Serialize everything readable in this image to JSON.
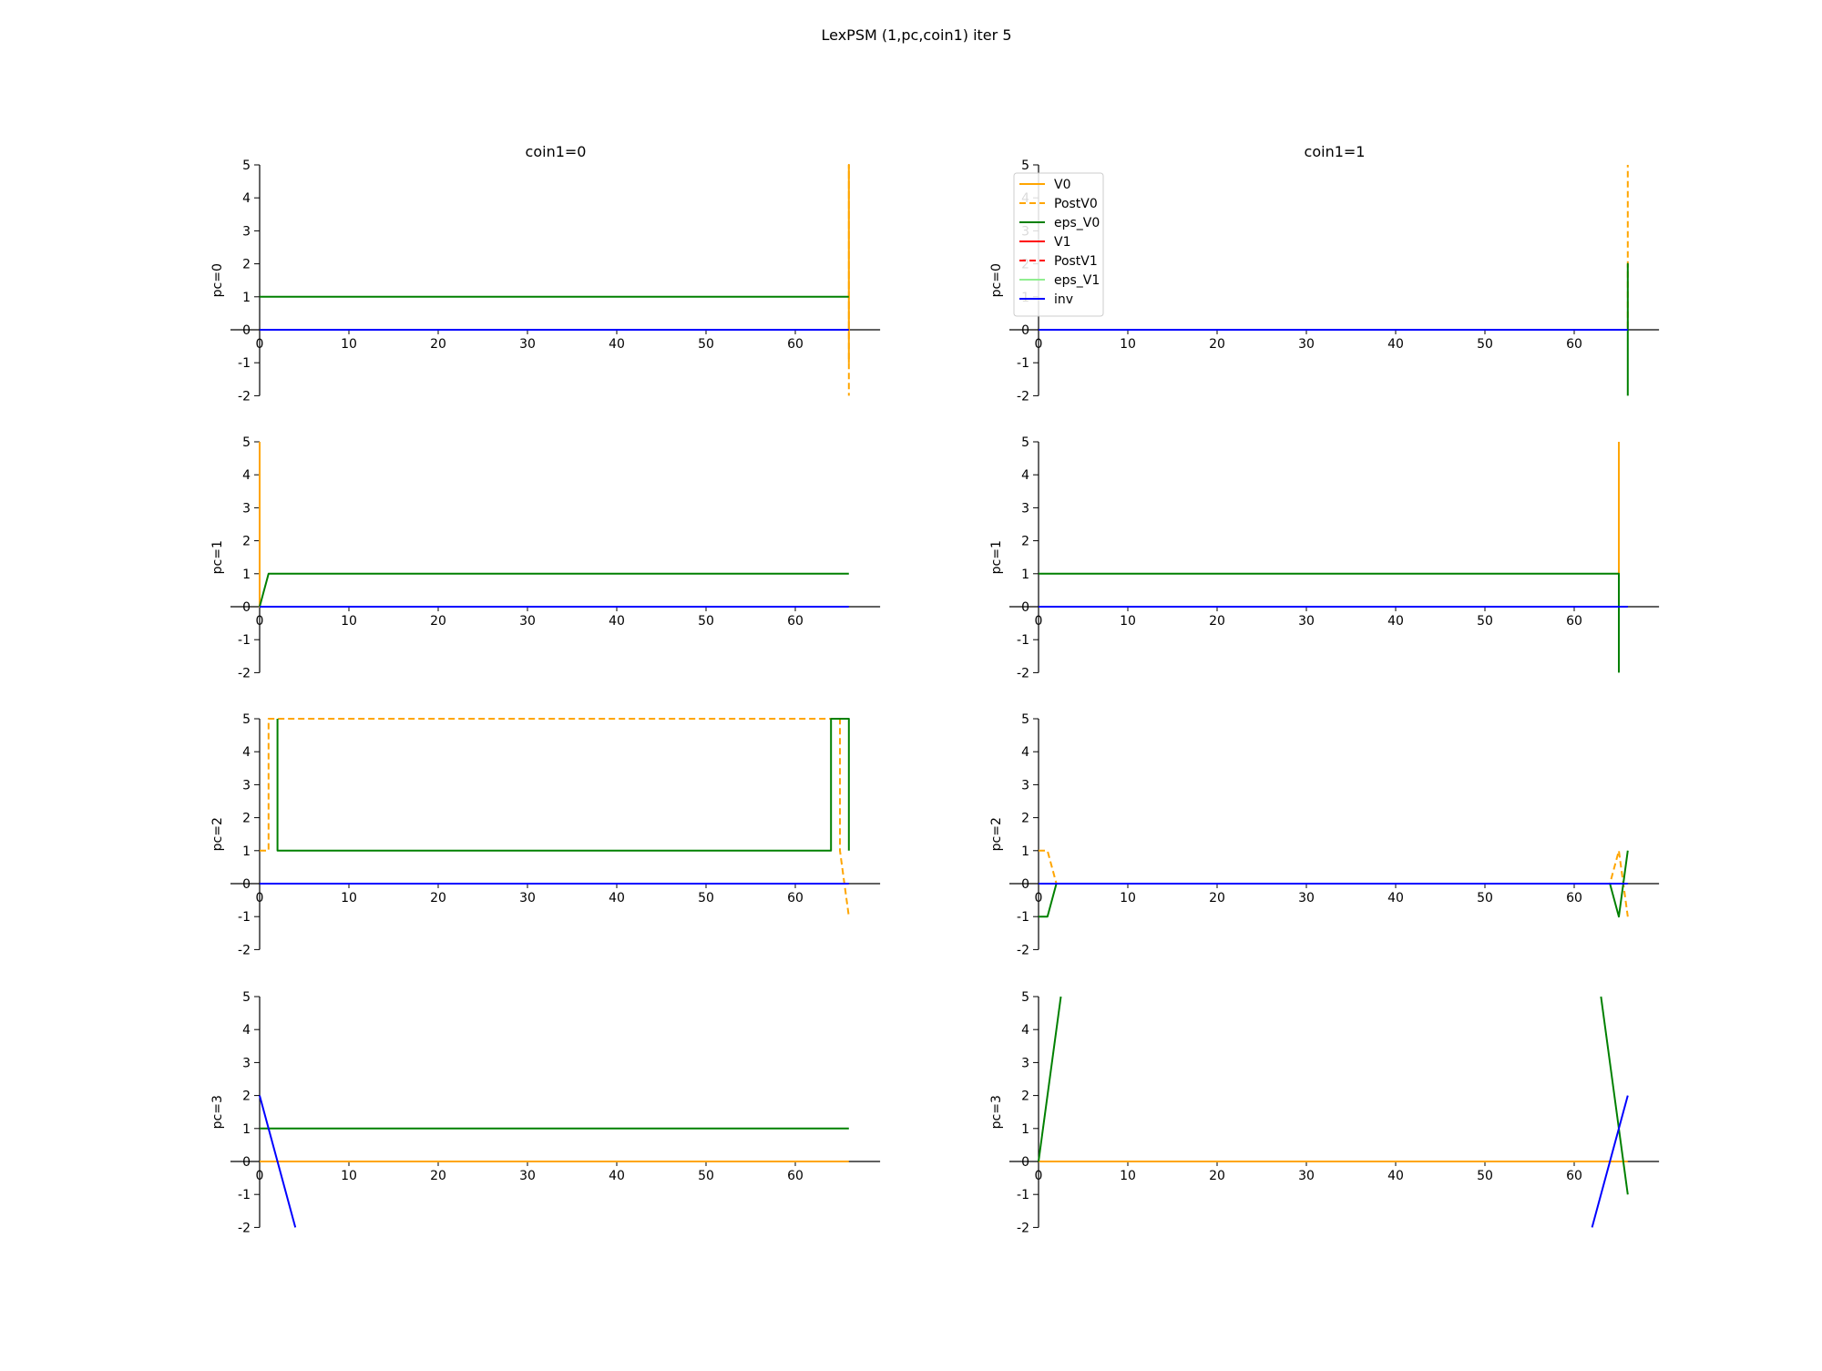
{
  "title": "LexPSM (1,pc,coin1) iter 5",
  "legend": {
    "placement": "top-left of coin1=1, pc=0 panel",
    "entries": [
      {
        "label": "V0",
        "color": "#ffa500",
        "dashed": false
      },
      {
        "label": "PostV0",
        "color": "#ffa500",
        "dashed": true
      },
      {
        "label": "eps_V0",
        "color": "#008000",
        "dashed": false
      },
      {
        "label": "V1",
        "color": "#ff0000",
        "dashed": false
      },
      {
        "label": "PostV1",
        "color": "#ff0000",
        "dashed": true
      },
      {
        "label": "eps_V1",
        "color": "#90ee90",
        "dashed": false
      },
      {
        "label": "inv",
        "color": "#0000ff",
        "dashed": false
      }
    ]
  },
  "chart_data": {
    "type": "line",
    "column_titles": [
      "coin1=0",
      "coin1=1"
    ],
    "row_labels": [
      "pc=0",
      "pc=1",
      "pc=2",
      "pc=3"
    ],
    "xlim": [
      0,
      69.5
    ],
    "ylim": [
      -2,
      5
    ],
    "xticks": [
      0,
      10,
      20,
      30,
      40,
      50,
      60
    ],
    "yticks": [
      -2,
      -1,
      0,
      1,
      2,
      3,
      4,
      5
    ],
    "grid": false,
    "panels": [
      {
        "row": 0,
        "col": 0,
        "series": [
          {
            "name": "V0",
            "color": "#ffa500",
            "dash": false,
            "points": [
              [
                0,
                0
              ],
              [
                66,
                0
              ],
              [
                66,
                5
              ],
              [
                66,
                -1
              ]
            ]
          },
          {
            "name": "PostV0",
            "color": "#ffa500",
            "dash": true,
            "points": [
              [
                0,
                0
              ],
              [
                66,
                0
              ],
              [
                66,
                5
              ],
              [
                66,
                -2
              ]
            ]
          },
          {
            "name": "eps_V0",
            "color": "#008000",
            "dash": false,
            "points": [
              [
                0,
                1
              ],
              [
                66,
                1
              ]
            ]
          },
          {
            "name": "inv",
            "color": "#0000ff",
            "dash": false,
            "points": [
              [
                0,
                0
              ],
              [
                66,
                0
              ]
            ]
          }
        ]
      },
      {
        "row": 0,
        "col": 1,
        "series": [
          {
            "name": "V0",
            "color": "#ffa500",
            "dash": false,
            "points": [
              [
                0,
                0
              ],
              [
                66,
                0
              ]
            ]
          },
          {
            "name": "PostV0",
            "color": "#ffa500",
            "dash": true,
            "points": [
              [
                0,
                0
              ],
              [
                66,
                0
              ],
              [
                66,
                5
              ]
            ]
          },
          {
            "name": "eps_V0",
            "color": "#008000",
            "dash": false,
            "points": [
              [
                0,
                0
              ],
              [
                66,
                0
              ],
              [
                66,
                2
              ],
              [
                66,
                -2
              ]
            ]
          },
          {
            "name": "inv",
            "color": "#0000ff",
            "dash": false,
            "points": [
              [
                0,
                0
              ],
              [
                66,
                0
              ]
            ]
          }
        ]
      },
      {
        "row": 1,
        "col": 0,
        "series": [
          {
            "name": "V0",
            "color": "#ffa500",
            "dash": false,
            "points": [
              [
                0,
                5
              ],
              [
                0,
                0
              ],
              [
                66,
                0
              ]
            ]
          },
          {
            "name": "PostV0",
            "color": "#ffa500",
            "dash": true,
            "points": [
              [
                0,
                0
              ],
              [
                66,
                0
              ]
            ]
          },
          {
            "name": "eps_V0",
            "color": "#008000",
            "dash": false,
            "points": [
              [
                0,
                0
              ],
              [
                1,
                1
              ],
              [
                66,
                1
              ]
            ]
          },
          {
            "name": "inv",
            "color": "#0000ff",
            "dash": false,
            "points": [
              [
                0,
                0
              ],
              [
                66,
                0
              ]
            ]
          }
        ]
      },
      {
        "row": 1,
        "col": 1,
        "series": [
          {
            "name": "V0",
            "color": "#ffa500",
            "dash": false,
            "points": [
              [
                0,
                0
              ],
              [
                65,
                0
              ],
              [
                65,
                5
              ]
            ]
          },
          {
            "name": "PostV0",
            "color": "#ffa500",
            "dash": true,
            "points": [
              [
                0,
                0
              ],
              [
                66,
                0
              ]
            ]
          },
          {
            "name": "eps_V0",
            "color": "#008000",
            "dash": false,
            "points": [
              [
                0,
                1
              ],
              [
                65,
                1
              ],
              [
                65,
                -2
              ]
            ]
          },
          {
            "name": "inv",
            "color": "#0000ff",
            "dash": false,
            "points": [
              [
                0,
                0
              ],
              [
                66,
                0
              ]
            ]
          }
        ]
      },
      {
        "row": 2,
        "col": 0,
        "series": [
          {
            "name": "V0",
            "color": "#ffa500",
            "dash": false,
            "points": [
              [
                0,
                0
              ],
              [
                66,
                0
              ]
            ]
          },
          {
            "name": "PostV0",
            "color": "#ffa500",
            "dash": true,
            "points": [
              [
                0,
                1
              ],
              [
                1,
                1
              ],
              [
                1,
                5
              ],
              [
                65,
                5
              ],
              [
                65,
                1
              ],
              [
                66,
                -1
              ]
            ]
          },
          {
            "name": "eps_V0",
            "color": "#008000",
            "dash": false,
            "points": [
              [
                2,
                5
              ],
              [
                2,
                1
              ],
              [
                64,
                1
              ],
              [
                64,
                5
              ],
              [
                66,
                5
              ],
              [
                66,
                1
              ]
            ]
          },
          {
            "name": "inv",
            "color": "#0000ff",
            "dash": false,
            "points": [
              [
                0,
                0
              ],
              [
                66,
                0
              ]
            ]
          }
        ]
      },
      {
        "row": 2,
        "col": 1,
        "series": [
          {
            "name": "V0",
            "color": "#ffa500",
            "dash": false,
            "points": [
              [
                0,
                0
              ],
              [
                66,
                0
              ]
            ]
          },
          {
            "name": "PostV0",
            "color": "#ffa500",
            "dash": true,
            "points": [
              [
                0,
                1
              ],
              [
                1,
                1
              ],
              [
                2,
                0
              ],
              [
                64,
                0
              ],
              [
                65,
                1
              ],
              [
                66,
                -1
              ]
            ]
          },
          {
            "name": "eps_V0",
            "color": "#008000",
            "dash": false,
            "points": [
              [
                0,
                -1
              ],
              [
                1,
                -1
              ],
              [
                2,
                0
              ],
              [
                64,
                0
              ],
              [
                65,
                -1
              ],
              [
                66,
                1
              ]
            ]
          },
          {
            "name": "inv",
            "color": "#0000ff",
            "dash": false,
            "points": [
              [
                0,
                0
              ],
              [
                66,
                0
              ]
            ]
          }
        ]
      },
      {
        "row": 3,
        "col": 0,
        "series": [
          {
            "name": "V0",
            "color": "#ffa500",
            "dash": false,
            "points": [
              [
                0,
                0
              ],
              [
                66,
                0
              ]
            ]
          },
          {
            "name": "eps_V0",
            "color": "#008000",
            "dash": false,
            "points": [
              [
                0,
                1
              ],
              [
                66,
                1
              ]
            ]
          },
          {
            "name": "inv",
            "color": "#0000ff",
            "dash": false,
            "points": [
              [
                0,
                2
              ],
              [
                4,
                -2
              ]
            ]
          }
        ]
      },
      {
        "row": 3,
        "col": 1,
        "series": [
          {
            "name": "V0",
            "color": "#ffa500",
            "dash": false,
            "points": [
              [
                0,
                0
              ],
              [
                66,
                0
              ]
            ]
          },
          {
            "name": "eps_V0",
            "color": "#008000",
            "dash": false,
            "points": [
              [
                0,
                0
              ],
              [
                2.5,
                5
              ]
            ]
          },
          {
            "name": "eps_V0",
            "color": "#008000",
            "dash": false,
            "points": [
              [
                63,
                5
              ],
              [
                66,
                -1
              ]
            ]
          },
          {
            "name": "inv",
            "color": "#0000ff",
            "dash": false,
            "points": [
              [
                62,
                -2
              ],
              [
                66,
                2
              ]
            ]
          }
        ]
      }
    ]
  }
}
